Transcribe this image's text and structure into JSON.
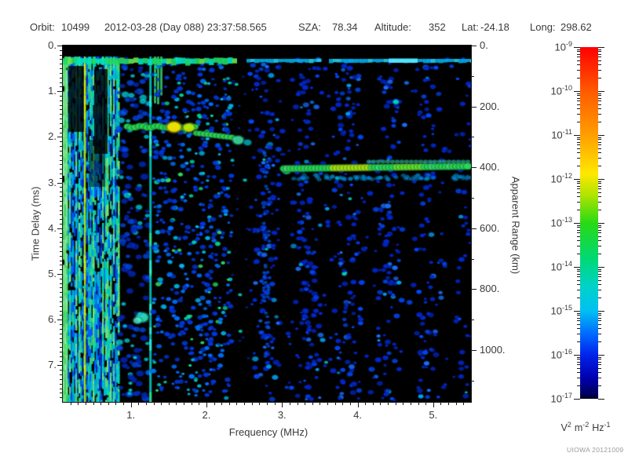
{
  "header": {
    "orbit_label": "Orbit:",
    "orbit_value": "10499",
    "datetime": "2012-03-28 (Day 088) 23:37:58.565",
    "sza_label": "SZA:",
    "sza_value": "78.34",
    "altitude_label": "Altitude:",
    "altitude_value": "352",
    "lat_label": "Lat:",
    "lat_value": "-24.18",
    "long_label": "Long:",
    "long_value": "298.62"
  },
  "footer": {
    "credit": "UIOWA 20121009"
  },
  "chart_data": {
    "type": "heatmap",
    "subtype": "radar-sounder-ionogram-spectrogram",
    "background_color": "#000000",
    "x_axis": {
      "label": "Frequency (MHz)",
      "min": 0.1,
      "max": 5.5,
      "major_tick_labels": [
        "1.",
        "2.",
        "3.",
        "4.",
        "5."
      ],
      "major_tick_values": [
        1,
        2,
        3,
        4,
        5
      ],
      "minor_tick_step": 0.1
    },
    "y_left_axis": {
      "label": "Time Delay (ms)",
      "min": 0,
      "max": 7.8,
      "major_tick_labels": [
        "0.",
        "1.",
        "2.",
        "3.",
        "4.",
        "5.",
        "6.",
        "7."
      ],
      "major_tick_values": [
        0,
        1,
        2,
        3,
        4,
        5,
        6,
        7
      ],
      "minor_tick_step": 0.1
    },
    "y_right_axis": {
      "label": "Apparent Range (km)",
      "min": 0,
      "max": 1170,
      "major_tick_labels": [
        "0.",
        "200.",
        "400.",
        "600.",
        "800.",
        "1000."
      ],
      "major_tick_values": [
        0,
        200,
        400,
        600,
        800,
        1000
      ],
      "minor_tick_step": 100
    },
    "colorbar": {
      "scale": "log10",
      "top_exponent": -9,
      "bottom_exponent": -17,
      "tick_exponents": [
        -9,
        -10,
        -11,
        -12,
        -13,
        -14,
        -15,
        -16,
        -17
      ],
      "unit_parts": [
        {
          "base": "V",
          "exp": "2"
        },
        {
          "base": "m",
          "exp": "-2"
        },
        {
          "base": "Hz",
          "exp": "-1"
        }
      ],
      "gradient_stops": [
        [
          "#ff0000",
          0
        ],
        [
          "#ff5a00",
          0.125
        ],
        [
          "#ff9e00",
          0.25
        ],
        [
          "#ffe800",
          0.36
        ],
        [
          "#b0e400",
          0.42
        ],
        [
          "#28da14",
          0.5
        ],
        [
          "#00d878",
          0.605
        ],
        [
          "#00d2c8",
          0.68
        ],
        [
          "#00c0f2",
          0.75
        ],
        [
          "#0064ff",
          0.82
        ],
        [
          "#0024ea",
          0.875
        ],
        [
          "#0000b0",
          0.94
        ],
        [
          "#000058",
          0.99
        ],
        [
          "#000018",
          1
        ]
      ]
    },
    "features": [
      {
        "name": "direct-signal-line",
        "kind": "horizontal-band",
        "delay_ms": 0.33,
        "freq_range_mhz": [
          0.1,
          5.5
        ]
      },
      {
        "name": "low-frequency-striped-noise",
        "kind": "noise-region",
        "intensity": "strong",
        "freq_range_mhz": [
          0.1,
          0.85
        ],
        "delay_range_ms": [
          0.25,
          7.8
        ]
      },
      {
        "name": "plasma-harmonic-line",
        "kind": "vertical-line",
        "freq_mhz": 0.39
      },
      {
        "name": "vertical-line-2",
        "kind": "vertical-line",
        "freq_mhz": 1.26
      },
      {
        "name": "cyan-patch",
        "kind": "bright-spot",
        "freq_mhz": 1.15,
        "delay_ms": 5.95
      },
      {
        "name": "ionospheric-echo-upper",
        "kind": "echo-trace",
        "freq_range_mhz": [
          0.96,
          1.87
        ],
        "delay_ms": 1.78
      },
      {
        "name": "ionospheric-echo-hotspot",
        "kind": "bright-spot",
        "freq_range_mhz": [
          1.55,
          1.85
        ],
        "delay_ms": 1.8
      },
      {
        "name": "ionospheric-echo-lower",
        "kind": "echo-trace",
        "freq_range_mhz": [
          1.87,
          2.35
        ],
        "delay_ms": 1.97
      },
      {
        "name": "ionospheric-echo-end-blob",
        "kind": "bright-spot",
        "freq_mhz": 2.42,
        "delay_ms": 2.07
      },
      {
        "name": "quiet-band",
        "kind": "vertical-gap",
        "freq_range_mhz": [
          2.33,
          2.57
        ]
      },
      {
        "name": "mid-frequency-noise",
        "kind": "noise-region",
        "intensity": "moderate",
        "freq_range_mhz": [
          1.25,
          2.33
        ],
        "delay_range_ms": [
          0.25,
          7.8
        ]
      },
      {
        "name": "high-frequency-noise",
        "kind": "noise-region",
        "intensity": "sparse-decreasing",
        "freq_range_mhz": [
          2.57,
          5.5
        ],
        "delay_range_ms": [
          0.25,
          7.8
        ]
      },
      {
        "name": "ground-echo",
        "kind": "echo-trace",
        "freq_range_mhz": [
          3.03,
          5.5
        ],
        "delay_ms": 2.66,
        "apparent_range_km": 400
      }
    ]
  }
}
